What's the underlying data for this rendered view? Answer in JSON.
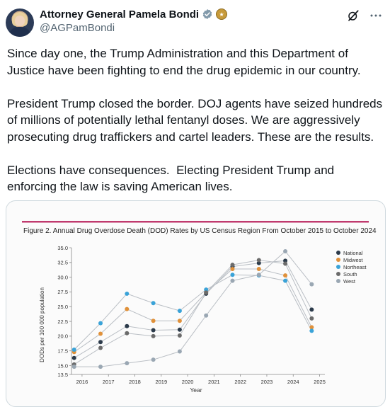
{
  "author": {
    "display_name": "Attorney General Pamela Bondi",
    "handle": "@AGPamBondi"
  },
  "icons": [
    "grok-icon",
    "more-icon",
    "verified-badge-icon",
    "government-badge-icon"
  ],
  "tweet_text": "Since day one, the Trump Administration and this Department of Justice have been fighting to end the drug epidemic in our country.\n\nPresident Trump closed the border. DOJ agents have seized hundreds of millions of potentially lethal fentanyl doses. We are aggressively prosecuting drug traffickers and cartel leaders. These are the results.\n\nElections have consequences.  Electing President Trump and enforcing the law is saving American lives.",
  "colors": {
    "accent_rule": "#c03a6e",
    "verified_blue": "#1d9bf0"
  },
  "chart_data": {
    "type": "line",
    "title": "Figure 2. Annual Drug Overdose Death (DOD) Rates by US Census Region From October 2015 to October 2024",
    "xlabel": "Year",
    "ylabel": "DODs per 100 000 population",
    "x": [
      2015.7,
      2016.7,
      2017.7,
      2018.7,
      2019.7,
      2020.7,
      2021.7,
      2022.7,
      2023.7,
      2024.7
    ],
    "xticks": [
      "2016",
      "2017",
      "2018",
      "2019",
      "2020",
      "2021",
      "2022",
      "2023",
      "2024",
      "2025"
    ],
    "xlim": [
      2015.6,
      2025.2
    ],
    "ylim": [
      13.5,
      35.0
    ],
    "yticks": [
      "13.5",
      "15.0",
      "17.5",
      "20.0",
      "22.5",
      "25.0",
      "27.5",
      "30.0",
      "32.5",
      "35.0"
    ],
    "legend_position": "right",
    "series": [
      {
        "name": "National",
        "color": "#2b3a4a",
        "values": [
          16.3,
          19.0,
          21.7,
          21.0,
          21.1,
          27.2,
          31.8,
          32.4,
          32.8,
          24.5
        ]
      },
      {
        "name": "Midwest",
        "color": "#e0913a",
        "values": [
          17.3,
          20.4,
          24.6,
          22.6,
          22.6,
          27.4,
          31.4,
          31.4,
          30.3,
          21.5
        ]
      },
      {
        "name": "Northeast",
        "color": "#3aa3d8",
        "values": [
          17.7,
          22.2,
          27.2,
          25.6,
          24.3,
          27.9,
          30.4,
          30.3,
          29.4,
          20.9
        ]
      },
      {
        "name": "South",
        "color": "#6b6b6b",
        "values": [
          15.2,
          18.0,
          20.5,
          20.0,
          20.1,
          27.4,
          32.1,
          32.9,
          32.3,
          23.0
        ]
      },
      {
        "name": "West",
        "color": "#9aa7b3",
        "values": [
          14.8,
          14.8,
          15.4,
          16.0,
          17.4,
          23.5,
          29.4,
          30.4,
          34.4,
          28.8
        ]
      }
    ]
  }
}
